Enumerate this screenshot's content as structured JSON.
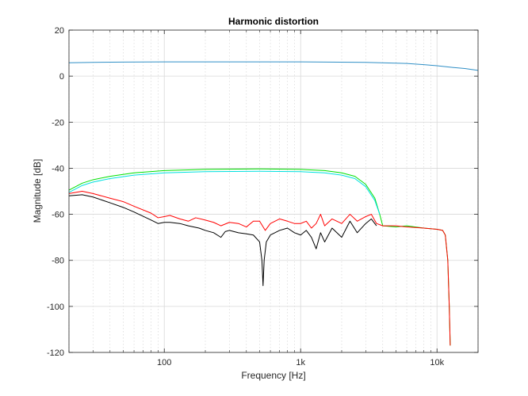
{
  "chart_data": {
    "type": "line",
    "title": "Harmonic distortion",
    "xlabel": "Frequency [Hz]",
    "ylabel": "Magnitude [dB]",
    "x_scale": "log",
    "xlim": [
      20,
      20000
    ],
    "ylim": [
      -120,
      20
    ],
    "xticks": [
      100,
      1000,
      10000
    ],
    "xtick_labels": [
      "100",
      "1k",
      "10k"
    ],
    "yticks": [
      20,
      0,
      -20,
      -40,
      -60,
      -80,
      -100,
      -120
    ],
    "grid": true,
    "series": [
      {
        "color": "#2f8fc6",
        "points": [
          [
            20,
            5.8
          ],
          [
            30,
            6.0
          ],
          [
            50,
            6.1
          ],
          [
            100,
            6.2
          ],
          [
            300,
            6.2
          ],
          [
            1000,
            6.2
          ],
          [
            3000,
            6.0
          ],
          [
            6000,
            5.5
          ],
          [
            8000,
            5.0
          ],
          [
            10000,
            4.5
          ],
          [
            13000,
            3.8
          ],
          [
            16000,
            3.3
          ],
          [
            20000,
            2.5
          ]
        ]
      },
      {
        "color": "#00e000",
        "points": [
          [
            20,
            -49.5
          ],
          [
            25,
            -46.5
          ],
          [
            30,
            -45
          ],
          [
            40,
            -43.5
          ],
          [
            60,
            -42
          ],
          [
            100,
            -41
          ],
          [
            200,
            -40.5
          ],
          [
            500,
            -40.3
          ],
          [
            1000,
            -40.5
          ],
          [
            1500,
            -41
          ],
          [
            2000,
            -42
          ],
          [
            2500,
            -43.5
          ],
          [
            3000,
            -47
          ],
          [
            3500,
            -53
          ],
          [
            3800,
            -60
          ],
          [
            4000,
            -65
          ],
          [
            5000,
            -65.5
          ],
          [
            6000,
            -65
          ],
          [
            8000,
            -66
          ],
          [
            10000,
            -66.5
          ],
          [
            11000,
            -67
          ],
          [
            11500,
            -69
          ],
          [
            12000,
            -80
          ],
          [
            12300,
            -100
          ],
          [
            12500,
            -117
          ]
        ]
      },
      {
        "color": "#00e0e0",
        "points": [
          [
            20,
            -50.5
          ],
          [
            25,
            -47.5
          ],
          [
            30,
            -46
          ],
          [
            40,
            -44.5
          ],
          [
            60,
            -43
          ],
          [
            100,
            -42
          ],
          [
            200,
            -41.5
          ],
          [
            500,
            -41.3
          ],
          [
            1000,
            -41.5
          ],
          [
            1500,
            -42
          ],
          [
            2000,
            -43
          ],
          [
            2500,
            -44.5
          ],
          [
            3000,
            -48
          ],
          [
            3500,
            -54
          ],
          [
            3800,
            -60
          ]
        ]
      },
      {
        "color": "#ff0000",
        "points": [
          [
            20,
            -51
          ],
          [
            25,
            -50
          ],
          [
            30,
            -51
          ],
          [
            40,
            -53
          ],
          [
            50,
            -54.5
          ],
          [
            60,
            -56.5
          ],
          [
            80,
            -59.5
          ],
          [
            90,
            -61.5
          ],
          [
            100,
            -61
          ],
          [
            110,
            -60.5
          ],
          [
            130,
            -62
          ],
          [
            150,
            -63
          ],
          [
            170,
            -61.5
          ],
          [
            200,
            -62.5
          ],
          [
            230,
            -63.5
          ],
          [
            260,
            -65
          ],
          [
            300,
            -63.5
          ],
          [
            350,
            -64
          ],
          [
            400,
            -65.5
          ],
          [
            450,
            -63
          ],
          [
            500,
            -63
          ],
          [
            550,
            -67
          ],
          [
            600,
            -64
          ],
          [
            700,
            -62
          ],
          [
            800,
            -63
          ],
          [
            900,
            -64
          ],
          [
            1000,
            -64
          ],
          [
            1100,
            -63
          ],
          [
            1200,
            -66
          ],
          [
            1300,
            -64
          ],
          [
            1400,
            -60
          ],
          [
            1500,
            -65
          ],
          [
            1700,
            -62
          ],
          [
            2000,
            -64
          ],
          [
            2300,
            -60
          ],
          [
            2600,
            -63
          ],
          [
            3000,
            -61
          ],
          [
            3300,
            -60
          ],
          [
            3600,
            -64
          ],
          [
            4000,
            -65
          ],
          [
            5000,
            -65
          ],
          [
            6000,
            -65.5
          ],
          [
            8000,
            -66
          ],
          [
            10000,
            -66.5
          ],
          [
            11000,
            -67
          ],
          [
            11500,
            -69
          ],
          [
            12000,
            -80
          ],
          [
            12300,
            -100
          ],
          [
            12500,
            -117
          ]
        ]
      },
      {
        "color": "#000000",
        "points": [
          [
            20,
            -52
          ],
          [
            25,
            -51.5
          ],
          [
            30,
            -52.5
          ],
          [
            40,
            -55
          ],
          [
            50,
            -57
          ],
          [
            60,
            -59
          ],
          [
            80,
            -62.5
          ],
          [
            90,
            -64
          ],
          [
            100,
            -63.5
          ],
          [
            110,
            -63.5
          ],
          [
            130,
            -64
          ],
          [
            150,
            -65
          ],
          [
            180,
            -66
          ],
          [
            200,
            -67
          ],
          [
            230,
            -68
          ],
          [
            260,
            -70
          ],
          [
            280,
            -67.5
          ],
          [
            300,
            -67
          ],
          [
            350,
            -68
          ],
          [
            400,
            -68.5
          ],
          [
            450,
            -69
          ],
          [
            500,
            -72
          ],
          [
            520,
            -80
          ],
          [
            530,
            -91
          ],
          [
            540,
            -80
          ],
          [
            560,
            -72
          ],
          [
            600,
            -69
          ],
          [
            700,
            -67
          ],
          [
            800,
            -66
          ],
          [
            900,
            -68
          ],
          [
            1000,
            -69
          ],
          [
            1100,
            -67
          ],
          [
            1200,
            -70
          ],
          [
            1300,
            -75
          ],
          [
            1400,
            -68
          ],
          [
            1500,
            -72
          ],
          [
            1700,
            -66
          ],
          [
            2000,
            -70
          ],
          [
            2300,
            -63
          ],
          [
            2600,
            -68
          ],
          [
            3000,
            -64
          ],
          [
            3300,
            -62
          ],
          [
            3600,
            -65
          ]
        ]
      }
    ]
  }
}
